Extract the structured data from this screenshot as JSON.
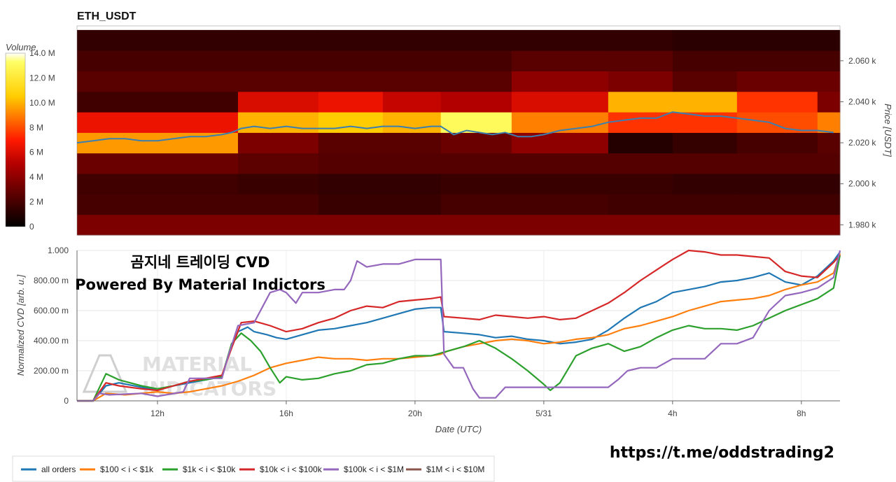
{
  "chart_data": [
    {
      "type": "heatmap",
      "title": "ETH_USDT",
      "colorbar_label": "Volume",
      "colorbar_ticks": [
        "0",
        "2 M",
        "4 M",
        "6 M",
        "8 M",
        "10.0 M",
        "12.0 M",
        "14.0 M"
      ],
      "colorbar_values": [
        0,
        2,
        4,
        6,
        8,
        10,
        12,
        14
      ],
      "colorscale": "hot",
      "ylabel": "Price [USDT]",
      "ylim": [
        1975,
        2077
      ],
      "y_ticks": [
        {
          "value": 1980,
          "label": "1.980 k"
        },
        {
          "value": 2000,
          "label": "2.000 k"
        },
        {
          "value": 2020,
          "label": "2.020 k"
        },
        {
          "value": 2040,
          "label": "2.040 k"
        },
        {
          "value": 2060,
          "label": "2.060 k"
        }
      ],
      "price_bins": [
        1975,
        1985,
        1995,
        2005,
        2015,
        2025,
        2035,
        2045,
        2055,
        2065,
        2075
      ],
      "time_segments_hours": [
        9.5,
        14.5,
        17.0,
        19.0,
        20.8,
        23.0,
        26.0,
        28.0,
        30.0,
        32.5,
        33.2
      ],
      "volume_millions": [
        [
          3.5,
          3.5,
          3.5,
          3.5,
          3.5,
          3.5,
          3.5,
          3.5,
          3.5,
          3.5
        ],
        [
          2.0,
          2.0,
          1.6,
          1.6,
          2.0,
          2.0,
          1.8,
          1.8,
          1.8,
          1.8
        ],
        [
          1.8,
          1.6,
          1.4,
          1.4,
          1.6,
          1.6,
          1.6,
          1.4,
          1.4,
          1.4
        ],
        [
          3.0,
          2.6,
          2.4,
          2.4,
          2.4,
          2.4,
          2.4,
          2.4,
          2.4,
          2.4
        ],
        [
          9.5,
          3.5,
          2.5,
          2.5,
          3.0,
          4.0,
          1.0,
          1.5,
          2.0,
          2.5
        ],
        [
          6.5,
          10.0,
          10.5,
          10.0,
          13.0,
          9.0,
          7.5,
          7.5,
          8.0,
          9.0
        ],
        [
          1.8,
          6.0,
          6.5,
          5.5,
          5.0,
          6.0,
          10.0,
          10.0,
          7.5,
          3.5
        ],
        [
          2.5,
          2.5,
          2.5,
          2.5,
          2.5,
          4.0,
          3.5,
          2.5,
          3.0,
          3.0
        ],
        [
          2.0,
          2.0,
          2.0,
          2.0,
          2.0,
          2.5,
          2.5,
          2.0,
          2.0,
          2.0
        ],
        [
          1.4,
          1.4,
          1.4,
          1.4,
          1.4,
          1.4,
          1.4,
          1.2,
          1.2,
          1.2
        ]
      ],
      "price_line": {
        "x": [
          9.5,
          10.0,
          10.5,
          11.0,
          11.5,
          12.0,
          12.5,
          13.0,
          13.5,
          14.0,
          14.3,
          14.6,
          15.0,
          15.5,
          16.0,
          16.5,
          17.0,
          17.5,
          18.0,
          18.5,
          19.0,
          19.5,
          20.0,
          20.5,
          20.8,
          21.2,
          21.6,
          22.0,
          22.4,
          22.8,
          23.2,
          23.6,
          24.0,
          24.5,
          25.0,
          25.5,
          26.0,
          26.5,
          27.0,
          27.5,
          28.0,
          28.5,
          29.0,
          29.5,
          30.0,
          30.5,
          31.0,
          31.5,
          32.0,
          32.5,
          33.0
        ],
        "y": [
          2020,
          2021,
          2022,
          2022,
          2021,
          2021,
          2022,
          2023,
          2023,
          2024,
          2025,
          2027,
          2028,
          2027,
          2028,
          2027,
          2027,
          2027,
          2028,
          2027,
          2028,
          2028,
          2027,
          2028,
          2028,
          2024,
          2026,
          2025,
          2024,
          2025,
          2023,
          2023,
          2024,
          2026,
          2027,
          2028,
          2030,
          2031,
          2032,
          2032,
          2035,
          2034,
          2033,
          2033,
          2032,
          2031,
          2030,
          2027,
          2026,
          2026,
          2025
        ]
      }
    },
    {
      "type": "line",
      "xlabel": "Date (UTC)",
      "ylabel": "Normalized CVD [arb. u.]",
      "xlim": [
        9.5,
        33.2
      ],
      "ylim": [
        0,
        1
      ],
      "x_ticks": [
        {
          "value": 12,
          "label": "12h"
        },
        {
          "value": 16,
          "label": "16h"
        },
        {
          "value": 20,
          "label": "20h"
        },
        {
          "value": 24,
          "label": "5/31"
        },
        {
          "value": 28,
          "label": "4h"
        },
        {
          "value": 32,
          "label": "8h"
        }
      ],
      "y_ticks": [
        {
          "value": 0,
          "label": "0"
        },
        {
          "value": 0.2,
          "label": "200.00 m"
        },
        {
          "value": 0.4,
          "label": "400.00 m"
        },
        {
          "value": 0.6,
          "label": "600.00 m"
        },
        {
          "value": 0.8,
          "label": "800.00 m"
        },
        {
          "value": 1.0,
          "label": "1.000"
        }
      ],
      "series": [
        {
          "name": "all orders",
          "color": "#1f77b4",
          "x": [
            9.5,
            10.0,
            10.4,
            10.8,
            11.5,
            12.0,
            12.5,
            13.0,
            13.5,
            14.0,
            14.2,
            14.5,
            14.8,
            15.0,
            15.4,
            15.7,
            16.0,
            16.5,
            17.0,
            17.5,
            18.0,
            18.5,
            19.0,
            19.5,
            20.0,
            20.5,
            20.8,
            20.9,
            21.5,
            22.0,
            22.5,
            23.0,
            23.5,
            24.0,
            24.5,
            25.0,
            25.5,
            26.0,
            26.5,
            27.0,
            27.5,
            28.0,
            28.5,
            29.0,
            29.5,
            30.0,
            30.5,
            31.0,
            31.5,
            32.0,
            32.5,
            33.0,
            33.2
          ],
          "y": [
            0.0,
            0.0,
            0.1,
            0.12,
            0.09,
            0.07,
            0.1,
            0.12,
            0.14,
            0.16,
            0.3,
            0.46,
            0.49,
            0.46,
            0.44,
            0.42,
            0.41,
            0.44,
            0.47,
            0.48,
            0.5,
            0.52,
            0.55,
            0.58,
            0.61,
            0.62,
            0.62,
            0.46,
            0.45,
            0.44,
            0.42,
            0.43,
            0.41,
            0.4,
            0.38,
            0.39,
            0.41,
            0.47,
            0.55,
            0.62,
            0.66,
            0.72,
            0.74,
            0.76,
            0.79,
            0.8,
            0.82,
            0.85,
            0.79,
            0.77,
            0.83,
            0.93,
            0.99
          ]
        },
        {
          "name": "$100 < i < $1k",
          "color": "#ff7f0e",
          "x": [
            9.5,
            10.0,
            10.4,
            11.0,
            12.0,
            12.5,
            13.0,
            13.5,
            14.0,
            14.5,
            15.0,
            15.5,
            16.0,
            16.5,
            17.0,
            17.5,
            18.0,
            18.5,
            19.0,
            19.5,
            20.0,
            20.5,
            20.8,
            21.0,
            21.5,
            22.0,
            22.5,
            23.0,
            23.5,
            24.0,
            24.5,
            25.0,
            25.5,
            26.0,
            26.5,
            27.0,
            27.5,
            28.0,
            28.5,
            29.0,
            29.5,
            30.0,
            30.5,
            31.0,
            31.5,
            32.0,
            32.5,
            33.0,
            33.2
          ],
          "y": [
            0.0,
            0.0,
            0.05,
            0.04,
            0.06,
            0.05,
            0.06,
            0.08,
            0.1,
            0.13,
            0.17,
            0.22,
            0.25,
            0.27,
            0.29,
            0.28,
            0.28,
            0.27,
            0.28,
            0.28,
            0.29,
            0.3,
            0.31,
            0.33,
            0.36,
            0.38,
            0.4,
            0.41,
            0.4,
            0.38,
            0.39,
            0.41,
            0.42,
            0.44,
            0.48,
            0.5,
            0.53,
            0.56,
            0.6,
            0.63,
            0.66,
            0.67,
            0.68,
            0.7,
            0.74,
            0.77,
            0.79,
            0.85,
            0.98
          ]
        },
        {
          "name": "$1k < i < $10k",
          "color": "#2ca02c",
          "x": [
            9.5,
            10.0,
            10.4,
            10.8,
            11.5,
            12.0,
            12.5,
            13.0,
            13.5,
            14.0,
            14.3,
            14.6,
            14.9,
            15.2,
            15.5,
            15.8,
            16.0,
            16.5,
            17.0,
            17.5,
            18.0,
            18.5,
            19.0,
            19.5,
            20.0,
            20.5,
            21.0,
            21.5,
            22.0,
            22.5,
            23.0,
            23.5,
            24.0,
            24.2,
            24.5,
            25.0,
            25.5,
            26.0,
            26.5,
            27.0,
            27.5,
            28.0,
            28.5,
            29.0,
            29.5,
            30.0,
            30.5,
            31.0,
            31.5,
            32.0,
            32.5,
            33.0,
            33.2
          ],
          "y": [
            0.0,
            0.0,
            0.18,
            0.14,
            0.1,
            0.08,
            0.1,
            0.13,
            0.14,
            0.16,
            0.38,
            0.45,
            0.4,
            0.33,
            0.22,
            0.12,
            0.16,
            0.14,
            0.15,
            0.18,
            0.2,
            0.24,
            0.25,
            0.28,
            0.3,
            0.3,
            0.33,
            0.36,
            0.4,
            0.35,
            0.28,
            0.2,
            0.11,
            0.07,
            0.12,
            0.3,
            0.35,
            0.38,
            0.33,
            0.36,
            0.42,
            0.47,
            0.5,
            0.48,
            0.48,
            0.47,
            0.5,
            0.55,
            0.6,
            0.64,
            0.68,
            0.75,
            0.97
          ]
        },
        {
          "name": "$10k < i < $100k",
          "color": "#d62728",
          "x": [
            9.5,
            10.0,
            10.4,
            10.8,
            11.5,
            12.0,
            12.5,
            13.0,
            13.5,
            14.0,
            14.3,
            14.6,
            15.0,
            15.5,
            16.0,
            16.5,
            17.0,
            17.5,
            18.0,
            18.5,
            19.0,
            19.5,
            20.0,
            20.5,
            20.8,
            20.9,
            21.5,
            22.0,
            22.5,
            23.0,
            23.5,
            24.0,
            24.5,
            25.0,
            25.5,
            26.0,
            26.5,
            27.0,
            27.5,
            28.0,
            28.5,
            29.0,
            29.5,
            30.0,
            30.5,
            31.0,
            31.5,
            32.0,
            32.5,
            33.0,
            33.2
          ],
          "y": [
            0.0,
            0.0,
            0.12,
            0.1,
            0.08,
            0.07,
            0.1,
            0.13,
            0.15,
            0.17,
            0.35,
            0.52,
            0.53,
            0.5,
            0.46,
            0.48,
            0.52,
            0.55,
            0.6,
            0.63,
            0.62,
            0.66,
            0.67,
            0.68,
            0.69,
            0.56,
            0.55,
            0.54,
            0.57,
            0.56,
            0.55,
            0.56,
            0.54,
            0.55,
            0.6,
            0.65,
            0.72,
            0.8,
            0.87,
            0.94,
            1.0,
            0.99,
            0.97,
            0.97,
            0.96,
            0.95,
            0.86,
            0.83,
            0.82,
            0.92,
            0.97
          ]
        },
        {
          "name": "$100k < i < $1M",
          "color": "#9467bd",
          "x": [
            9.5,
            10.0,
            10.2,
            10.5,
            11.5,
            12.0,
            12.8,
            13.0,
            14.0,
            14.2,
            14.5,
            15.0,
            15.5,
            15.8,
            16.0,
            16.3,
            16.5,
            17.0,
            17.5,
            17.8,
            18.0,
            18.2,
            18.5,
            19.0,
            19.5,
            20.0,
            20.5,
            20.8,
            20.9,
            21.2,
            21.5,
            21.8,
            22.0,
            22.5,
            22.8,
            23.0,
            24.0,
            25.0,
            26.0,
            26.3,
            26.6,
            27.0,
            27.5,
            28.0,
            28.5,
            29.0,
            29.5,
            30.0,
            30.5,
            31.0,
            31.5,
            32.0,
            32.5,
            33.0,
            33.2
          ],
          "y": [
            0.0,
            0.0,
            0.05,
            0.04,
            0.05,
            0.03,
            0.06,
            0.15,
            0.15,
            0.3,
            0.5,
            0.52,
            0.72,
            0.74,
            0.72,
            0.65,
            0.72,
            0.72,
            0.74,
            0.74,
            0.8,
            0.93,
            0.89,
            0.91,
            0.91,
            0.94,
            0.94,
            0.94,
            0.31,
            0.22,
            0.22,
            0.08,
            0.02,
            0.02,
            0.09,
            0.09,
            0.09,
            0.09,
            0.09,
            0.14,
            0.2,
            0.22,
            0.22,
            0.28,
            0.28,
            0.28,
            0.38,
            0.38,
            0.42,
            0.6,
            0.7,
            0.72,
            0.75,
            0.82,
            1.0
          ]
        },
        {
          "name": "$1M < i < $10M",
          "color": "#8c564b",
          "x": [],
          "y": []
        }
      ]
    }
  ],
  "overlay": {
    "line1": "곰지네 트레이딩 CVD",
    "line2": "Powered By Material Indictors",
    "watermark_line1": "MATERIAL",
    "watermark_line2": "INDICATORS",
    "link": "https://t.me/oddstrading2"
  }
}
